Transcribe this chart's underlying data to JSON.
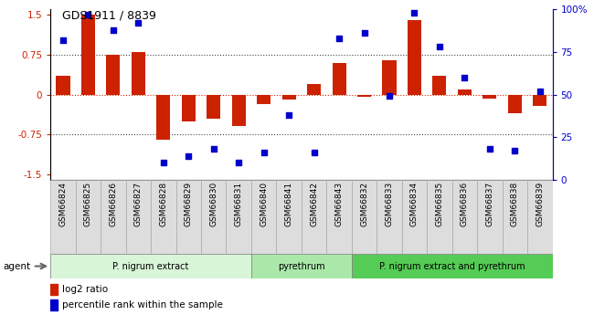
{
  "title": "GDS1911 / 8839",
  "samples": [
    "GSM66824",
    "GSM66825",
    "GSM66826",
    "GSM66827",
    "GSM66828",
    "GSM66829",
    "GSM66830",
    "GSM66831",
    "GSM66840",
    "GSM66841",
    "GSM66842",
    "GSM66843",
    "GSM66832",
    "GSM66833",
    "GSM66834",
    "GSM66835",
    "GSM66836",
    "GSM66837",
    "GSM66838",
    "GSM66839"
  ],
  "log2_ratio": [
    0.35,
    1.5,
    0.75,
    0.8,
    -0.85,
    -0.5,
    -0.45,
    -0.6,
    -0.18,
    -0.1,
    0.2,
    0.6,
    -0.05,
    0.65,
    1.4,
    0.35,
    0.1,
    -0.08,
    -0.35,
    -0.22
  ],
  "percentile": [
    82,
    97,
    88,
    92,
    10,
    14,
    18,
    10,
    16,
    38,
    16,
    83,
    86,
    49,
    98,
    78,
    60,
    18,
    17,
    52
  ],
  "groups": [
    {
      "label": "P. nigrum extract",
      "start": 0,
      "end": 8,
      "color": "#d8f5d8"
    },
    {
      "label": "pyrethrum",
      "start": 8,
      "end": 12,
      "color": "#aae8aa"
    },
    {
      "label": "P. nigrum extract and pyrethrum",
      "start": 12,
      "end": 20,
      "color": "#55cc55"
    }
  ],
  "bar_color": "#cc2200",
  "dot_color": "#0000cc",
  "bar_width": 0.55,
  "ylim_left": [
    -1.6,
    1.6
  ],
  "ylim_right": [
    0,
    100
  ],
  "yticks_left": [
    -1.5,
    -0.75,
    0.0,
    0.75,
    1.5
  ],
  "yticks_right": [
    0,
    25,
    50,
    75,
    100
  ],
  "ytick_labels_left": [
    "-1.5",
    "-0.75",
    "0",
    "0.75",
    "1.5"
  ],
  "ytick_labels_right": [
    "0",
    "25",
    "50",
    "75",
    "100%"
  ],
  "hlines": [
    0.75,
    -0.75
  ],
  "zero_line_color": "#dd2200",
  "hline_color": "#444444",
  "legend_items": [
    "log2 ratio",
    "percentile rank within the sample"
  ],
  "agent_label": "agent"
}
